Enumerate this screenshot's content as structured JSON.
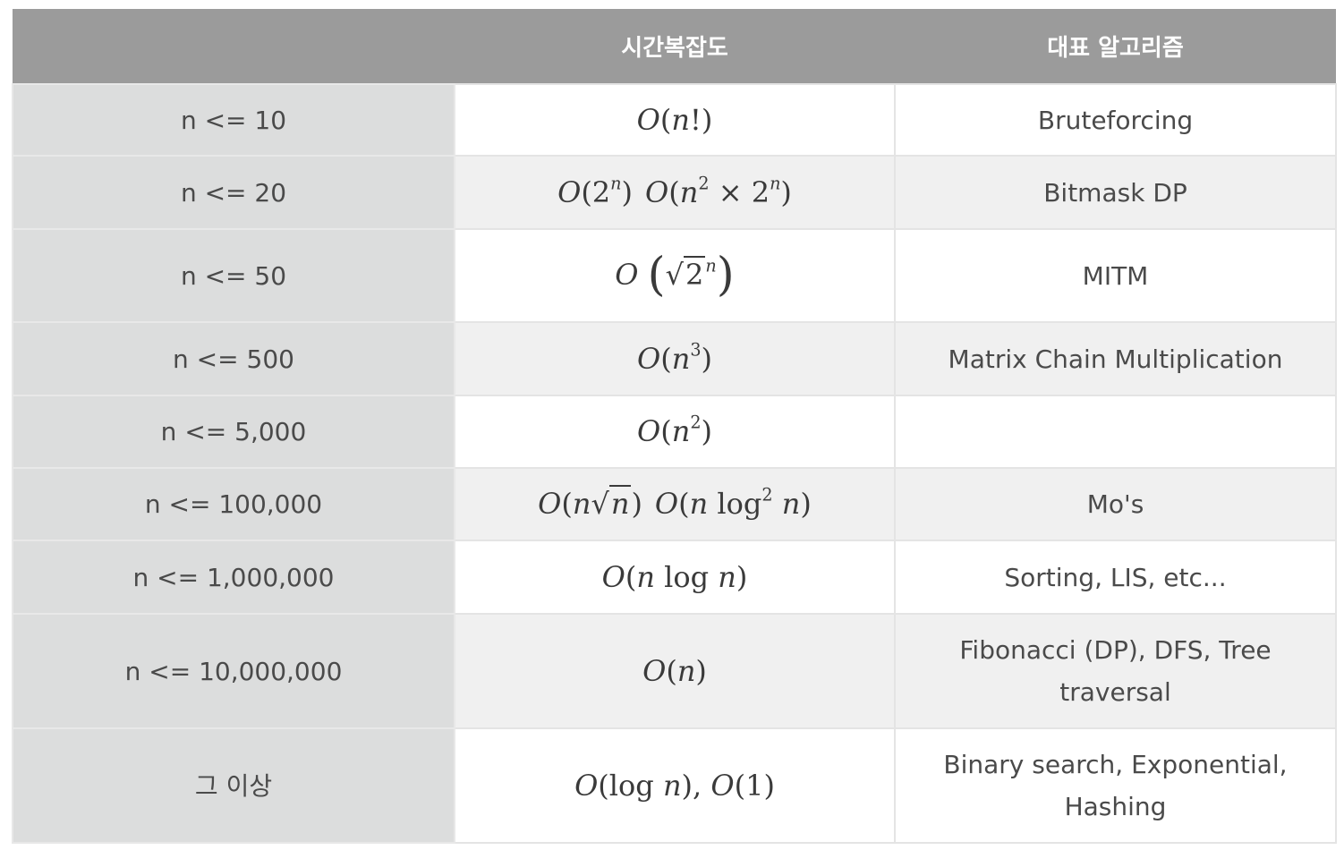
{
  "header": {
    "size_label": "",
    "complexity_label": "시간복잡도",
    "algorithm_label": "대표 알고리즘"
  },
  "rows": [
    {
      "size": "n <= 10",
      "complexity": "O(n!)",
      "algorithm": "Bruteforcing"
    },
    {
      "size": "n <= 20",
      "complexity": "O(2^n) O(n^2 × 2^n)",
      "algorithm": "Bitmask DP"
    },
    {
      "size": "n <= 50",
      "complexity": "O(√2^n)",
      "algorithm": "MITM"
    },
    {
      "size": "n <= 500",
      "complexity": "O(n^3)",
      "algorithm": "Matrix Chain Multiplication"
    },
    {
      "size": "n <= 5,000",
      "complexity": "O(n^2)",
      "algorithm": ""
    },
    {
      "size": "n <= 100,000",
      "complexity": "O(n√n) O(n log^2 n)",
      "algorithm": "Mo's"
    },
    {
      "size": "n <= 1,000,000",
      "complexity": "O(n log n)",
      "algorithm": "Sorting, LIS, etc..."
    },
    {
      "size": "n <= 10,000,000",
      "complexity": "O(n)",
      "algorithm": "Fibonacci (DP), DFS, Tree traversal"
    },
    {
      "size": "그 이상",
      "complexity": "O(log n), O(1)",
      "algorithm": "Binary search, Exponential, Hashing"
    }
  ],
  "colors": {
    "header_bg": "#9b9b9b",
    "first_column_bg": "#dcdddd",
    "striped_row_bg": "#f0f0f0",
    "text": "#4a4a4a"
  }
}
